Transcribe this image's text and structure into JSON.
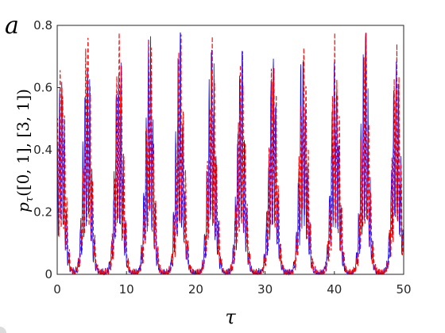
{
  "panel_label": "a",
  "chart_data": {
    "type": "line",
    "xlabel": "τ",
    "ylabel": "p_τ([0,1],[3,1])",
    "xlim": [
      0,
      50
    ],
    "ylim": [
      0,
      0.8
    ],
    "xticks": [
      0,
      10,
      20,
      30,
      40,
      50
    ],
    "yticks": [
      0,
      0.2,
      0.4,
      0.6,
      0.8
    ],
    "grid": false,
    "burst_centers": [
      0.5,
      4.3,
      8.9,
      13.3,
      17.7,
      22.3,
      26.5,
      31.1,
      35.5,
      40.1,
      44.4,
      48.9
    ],
    "burst_peaks": [
      0.72,
      0.75,
      0.76,
      0.76,
      0.76,
      0.75,
      0.73,
      0.75,
      0.76,
      0.76,
      0.76,
      0.75
    ],
    "series": [
      {
        "style": "solid",
        "color": "#0000ff"
      },
      {
        "style": "dashed",
        "color": "#ff0000"
      }
    ]
  }
}
